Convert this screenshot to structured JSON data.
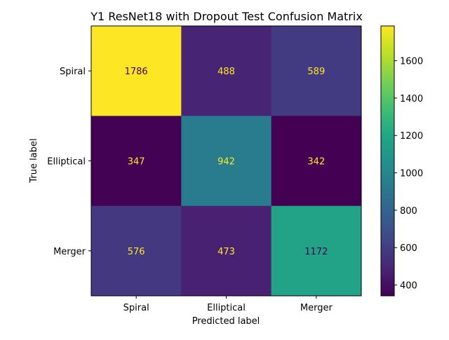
{
  "chart_data": {
    "type": "heatmap",
    "title": "Y1 ResNet18 with Dropout Test Confusion Matrix",
    "xlabel": "Predicted label",
    "ylabel": "True label",
    "x_categories": [
      "Spiral",
      "Elliptical",
      "Merger"
    ],
    "y_categories": [
      "Spiral",
      "Elliptical",
      "Merger"
    ],
    "values": [
      [
        1786,
        488,
        589
      ],
      [
        347,
        942,
        342
      ],
      [
        576,
        473,
        1172
      ]
    ],
    "colormap": "viridis",
    "colorbar": {
      "range": [
        342,
        1786
      ],
      "ticks": [
        400,
        600,
        800,
        1000,
        1200,
        1400,
        1600
      ]
    },
    "label_colors": {
      "on_dark": "#fde725",
      "on_light": "#440154"
    }
  }
}
